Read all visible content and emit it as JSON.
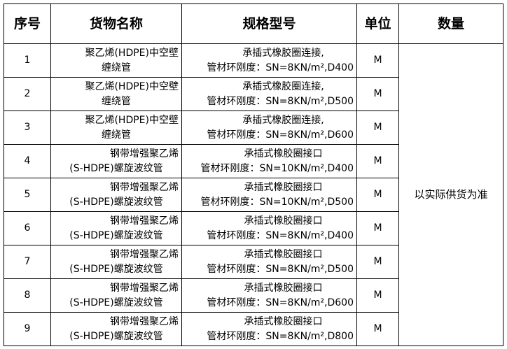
{
  "headers": {
    "no": "序号",
    "name": "货物名称",
    "spec": "规格型号",
    "unit": "单位",
    "qty": "数量"
  },
  "quantity_note": "以实际供货为准",
  "rows": [
    {
      "no": "1",
      "name1": "聚乙烯(HDPE)中空壁",
      "name2": "缠绕管",
      "spec1": "承插式橡胶圈连接,",
      "spec2": "管材环刚度：SN=8KN/m²,D400",
      "unit": "M"
    },
    {
      "no": "2",
      "name1": "聚乙烯(HDPE)中空壁",
      "name2": "缠绕管",
      "spec1": "承插式橡胶圈连接,",
      "spec2": "管材环刚度：SN=8KN/m²,D500",
      "unit": "M"
    },
    {
      "no": "3",
      "name1": "聚乙烯(HDPE)中空壁",
      "name2": "缠绕管",
      "spec1": "承插式橡胶圈连接,",
      "spec2": "管材环刚度：SN=8KN/m²,D600",
      "unit": "M"
    },
    {
      "no": "4",
      "name1": "钢带增强聚乙烯",
      "name2": "(S-HDPE)螺旋波纹管",
      "spec1": "承插式橡胶圈接口",
      "spec2": "管材环刚度：SN=10KN/m²,D400",
      "unit": "M"
    },
    {
      "no": "5",
      "name1": "钢带增强聚乙烯",
      "name2": "(S-HDPE)螺旋波纹管",
      "spec1": "承插式橡胶圈接口",
      "spec2": "管材环刚度：SN=10KN/m²,D500",
      "unit": "M"
    },
    {
      "no": "6",
      "name1": "钢带增强聚乙烯",
      "name2": "(S-HDPE)螺旋波纹管",
      "spec1": "承插式橡胶圈接口",
      "spec2": "管材环刚度：SN=8KN/m²,D400",
      "unit": "M"
    },
    {
      "no": "7",
      "name1": "钢带增强聚乙烯",
      "name2": "(S-HDPE)螺旋波纹管",
      "spec1": "承插式橡胶圈接口",
      "spec2": "管材环刚度：SN=8KN/m²,D500",
      "unit": "M"
    },
    {
      "no": "8",
      "name1": "钢带增强聚乙烯",
      "name2": "(S-HDPE)螺旋波纹管",
      "spec1": "承插式橡胶圈接口",
      "spec2": "管材环刚度：SN=8KN/m²,D600",
      "unit": "M"
    },
    {
      "no": "9",
      "name1": "钢带增强聚乙烯",
      "name2": "(S-HDPE)螺旋波纹管",
      "spec1": "承插式橡胶圈接口",
      "spec2": "管材环刚度：SN=8KN/m²,D800",
      "unit": "M"
    }
  ]
}
